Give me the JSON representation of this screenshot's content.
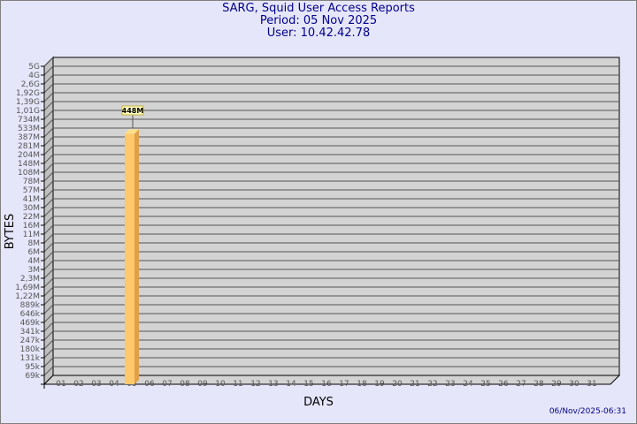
{
  "header": {
    "title": "SARG, Squid User Access Reports",
    "period": "Period: 05 Nov 2025",
    "user": "User: 10.42.42.78"
  },
  "footer": {
    "timestamp": "06/Nov/2025-06:31"
  },
  "colors": {
    "background": "#e6e6fa",
    "plot": "#d3d3d3",
    "bar_front": "#ffc86a",
    "bar_side": "#e0a04a",
    "bar_top": "#ffe08a",
    "title": "#00008b"
  },
  "chart_data": {
    "type": "bar",
    "title": "SARG, Squid User Access Reports",
    "xlabel": "DAYS",
    "ylabel": "BYTES",
    "y_scale": "log",
    "y_tick_labels": [
      "5G",
      "4G",
      "2,6G",
      "1,92G",
      "1,39G",
      "1,01G",
      "734M",
      "533M",
      "387M",
      "281M",
      "204M",
      "148M",
      "108M",
      "78M",
      "57M",
      "41M",
      "30M",
      "22M",
      "16M",
      "11M",
      "8M",
      "6M",
      "4M",
      "3M",
      "2,3M",
      "1,69M",
      "1,22M",
      "889k",
      "646k",
      "469k",
      "341k",
      "247k",
      "180k",
      "131k",
      "95k",
      "69k"
    ],
    "categories": [
      "01",
      "02",
      "03",
      "04",
      "05",
      "06",
      "07",
      "08",
      "09",
      "10",
      "11",
      "12",
      "13",
      "14",
      "15",
      "16",
      "17",
      "18",
      "19",
      "20",
      "21",
      "22",
      "23",
      "24",
      "25",
      "26",
      "27",
      "28",
      "29",
      "30",
      "31"
    ],
    "bars": [
      {
        "category": "05",
        "value": "448M",
        "value_level": 448000000
      }
    ],
    "grid": true
  }
}
